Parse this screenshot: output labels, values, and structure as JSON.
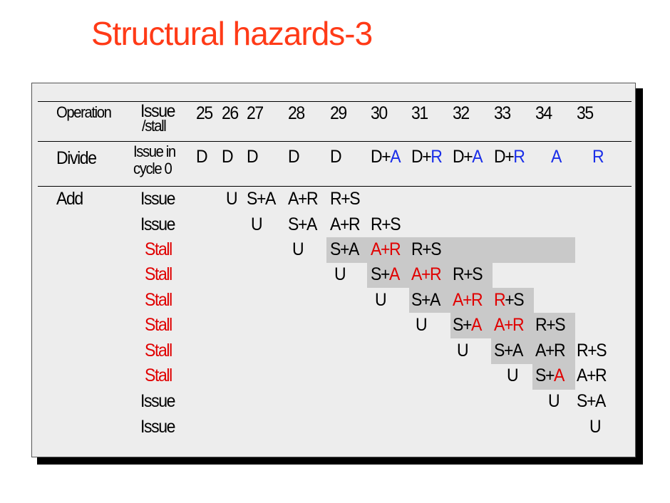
{
  "title": "Structural hazards-3",
  "colors": {
    "title": "#ff3a17",
    "stall": "#e00000",
    "blue": "#1a2ee8",
    "shade": "#c9c9c9"
  },
  "header": {
    "operation": "Operation",
    "issue_line1": "Issue",
    "issue_line2": "/stall",
    "cycles": [
      "25",
      "26",
      "27",
      "28",
      "29",
      "30",
      "31",
      "32",
      "33",
      "34",
      "35"
    ]
  },
  "divide_row": {
    "op": "Divide",
    "issue_line1": "Issue in",
    "issue_line2": "cycle 0",
    "cells": [
      {
        "a": "D",
        "b": "",
        "c": ""
      },
      {
        "a": "D",
        "b": "",
        "c": ""
      },
      {
        "a": "D",
        "b": "",
        "c": ""
      },
      {
        "a": "D",
        "b": "",
        "c": ""
      },
      {
        "a": "D",
        "b": "",
        "c": ""
      },
      {
        "a": "D",
        "b": "+",
        "c": "A"
      },
      {
        "a": "D",
        "b": "+",
        "c": "R"
      },
      {
        "a": "D",
        "b": "+",
        "c": "A"
      },
      {
        "a": "D",
        "b": "+",
        "c": "R"
      },
      {
        "a": "",
        "b": "",
        "c": "A"
      },
      {
        "a": "",
        "b": "",
        "c": "R"
      }
    ]
  },
  "add_rows": [
    {
      "op": "Add",
      "status": "Issue",
      "cells": [
        "",
        "U",
        "S+A",
        "A+R",
        "R+S",
        "",
        "",
        "",
        "",
        "",
        ""
      ]
    },
    {
      "op": "",
      "status": "Issue",
      "cells": [
        "",
        "",
        "U",
        "S+A",
        "A+R",
        "R+S",
        "",
        "",
        "",
        "",
        ""
      ]
    },
    {
      "op": "",
      "status": "Stall",
      "cells": [
        "",
        "",
        "",
        "U",
        "S+A",
        "A+R",
        "R+S",
        "",
        "",
        "",
        ""
      ]
    },
    {
      "op": "",
      "status": "Stall",
      "cells": [
        "",
        "",
        "",
        "",
        "U",
        "S+A",
        "A+R",
        "R+S",
        "",
        "",
        ""
      ]
    },
    {
      "op": "",
      "status": "Stall",
      "cells": [
        "",
        "",
        "",
        "",
        "",
        "U",
        "S+A",
        "A+R",
        "R+S",
        "",
        ""
      ]
    },
    {
      "op": "",
      "status": "Stall",
      "cells": [
        "",
        "",
        "",
        "",
        "",
        "",
        "U",
        "S+A",
        "A+R",
        "R+S",
        ""
      ]
    },
    {
      "op": "",
      "status": "Stall",
      "cells": [
        "",
        "",
        "",
        "",
        "",
        "",
        "",
        "U",
        "S+A",
        "A+R",
        "R+S"
      ]
    },
    {
      "op": "",
      "status": "Stall",
      "cells": [
        "",
        "",
        "",
        "",
        "",
        "",
        "",
        "",
        "U",
        "S+A",
        "A+R"
      ]
    },
    {
      "op": "",
      "status": "Issue",
      "cells": [
        "",
        "",
        "",
        "",
        "",
        "",
        "",
        "",
        "",
        "U",
        "S+A"
      ]
    },
    {
      "op": "",
      "status": "Issue",
      "cells": [
        "",
        "",
        "",
        "",
        "",
        "",
        "",
        "",
        "",
        "",
        "U"
      ]
    }
  ]
}
